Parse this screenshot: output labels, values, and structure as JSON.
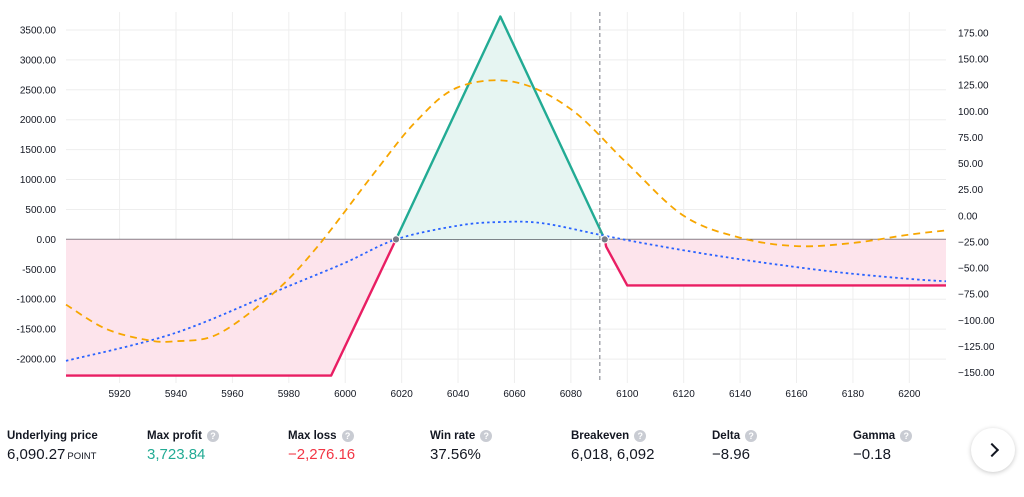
{
  "chart_data": {
    "type": "line",
    "x_ticks": [
      5920,
      5940,
      5960,
      5980,
      6000,
      6020,
      6040,
      6060,
      6080,
      6100,
      6120,
      6140,
      6160,
      6180,
      6200
    ],
    "xlim": [
      5901,
      6213
    ],
    "left_axis": {
      "ticks": [
        "3500.00",
        "3000.00",
        "2500.00",
        "2000.00",
        "1500.00",
        "1000.00",
        "500.00",
        "0.00",
        "-500.00",
        "-1000.00",
        "-1500.00",
        "-2000.00"
      ],
      "ylim": [
        -2400,
        3800
      ]
    },
    "right_axis": {
      "ticks": [
        "175.00",
        "150.00",
        "125.00",
        "100.00",
        "75.00",
        "50.00",
        "25.00",
        "0.00",
        "−25.00",
        "−50.00",
        "−75.00",
        "−100.00",
        "−125.00",
        "−150.00"
      ],
      "ylim": [
        -160,
        195
      ]
    },
    "current_price": 6090.27,
    "grid": true,
    "series": [
      {
        "axis": "left",
        "color": "#22ab94",
        "style": "solid",
        "points": [
          [
            5901,
            -2276
          ],
          [
            5995,
            -2276
          ],
          [
            6018,
            0
          ],
          [
            6055,
            3724
          ],
          [
            6092,
            0
          ],
          [
            6092.5,
            -120
          ],
          [
            6100,
            -770
          ],
          [
            6213,
            -770
          ]
        ]
      },
      {
        "axis": "left",
        "color": "#2962ff",
        "style": "dotted",
        "points": [
          [
            5901,
            -2030
          ],
          [
            5940,
            -1560
          ],
          [
            5980,
            -780
          ],
          [
            6000,
            -390
          ],
          [
            6018,
            0
          ],
          [
            6040,
            230
          ],
          [
            6055,
            290
          ],
          [
            6070,
            270
          ],
          [
            6092,
            60
          ],
          [
            6110,
            -100
          ],
          [
            6130,
            -260
          ],
          [
            6150,
            -400
          ],
          [
            6175,
            -550
          ],
          [
            6200,
            -660
          ],
          [
            6213,
            -700
          ]
        ]
      },
      {
        "axis": "right",
        "color": "#f7a600",
        "style": "dashed",
        "points": [
          [
            5901,
            -85
          ],
          [
            5915,
            -108
          ],
          [
            5930,
            -119
          ],
          [
            5940,
            -120
          ],
          [
            5955,
            -113
          ],
          [
            5975,
            -73
          ],
          [
            5990,
            -30
          ],
          [
            6010,
            40
          ],
          [
            6025,
            90
          ],
          [
            6040,
            123
          ],
          [
            6060,
            128
          ],
          [
            6080,
            102
          ],
          [
            6100,
            50
          ],
          [
            6120,
            0
          ],
          [
            6140,
            -21
          ],
          [
            6160,
            -29
          ],
          [
            6180,
            -26
          ],
          [
            6200,
            -18
          ],
          [
            6213,
            -14
          ]
        ]
      }
    ]
  },
  "stats": [
    {
      "label": "Underlying price",
      "value": "6,090.27",
      "unit": "POINT",
      "tone": "",
      "help": false
    },
    {
      "label": "Max profit",
      "value": "3,723.84",
      "unit": "",
      "tone": "pos",
      "help": true
    },
    {
      "label": "Max loss",
      "value": "−2,276.16",
      "unit": "",
      "tone": "neg",
      "help": true
    },
    {
      "label": "Win rate",
      "value": "37.56%",
      "unit": "",
      "tone": "",
      "help": true
    },
    {
      "label": "Breakeven",
      "value": "6,018, 6,092",
      "unit": "",
      "tone": "",
      "help": true
    },
    {
      "label": "Delta",
      "value": "−8.96",
      "unit": "",
      "tone": "",
      "help": true
    },
    {
      "label": "Gamma",
      "value": "−0.18",
      "unit": "",
      "tone": "",
      "help": true
    }
  ],
  "colors": {
    "profit_line": "#22ab94",
    "loss_line": "#e91e63",
    "profit_fill": "#e6f5f2",
    "loss_fill": "#fde4ec",
    "grid": "#eeeeee"
  },
  "icons": {
    "help": "question-mark-circle-icon",
    "next": "chevron-right-icon"
  },
  "help_glyph": "?"
}
